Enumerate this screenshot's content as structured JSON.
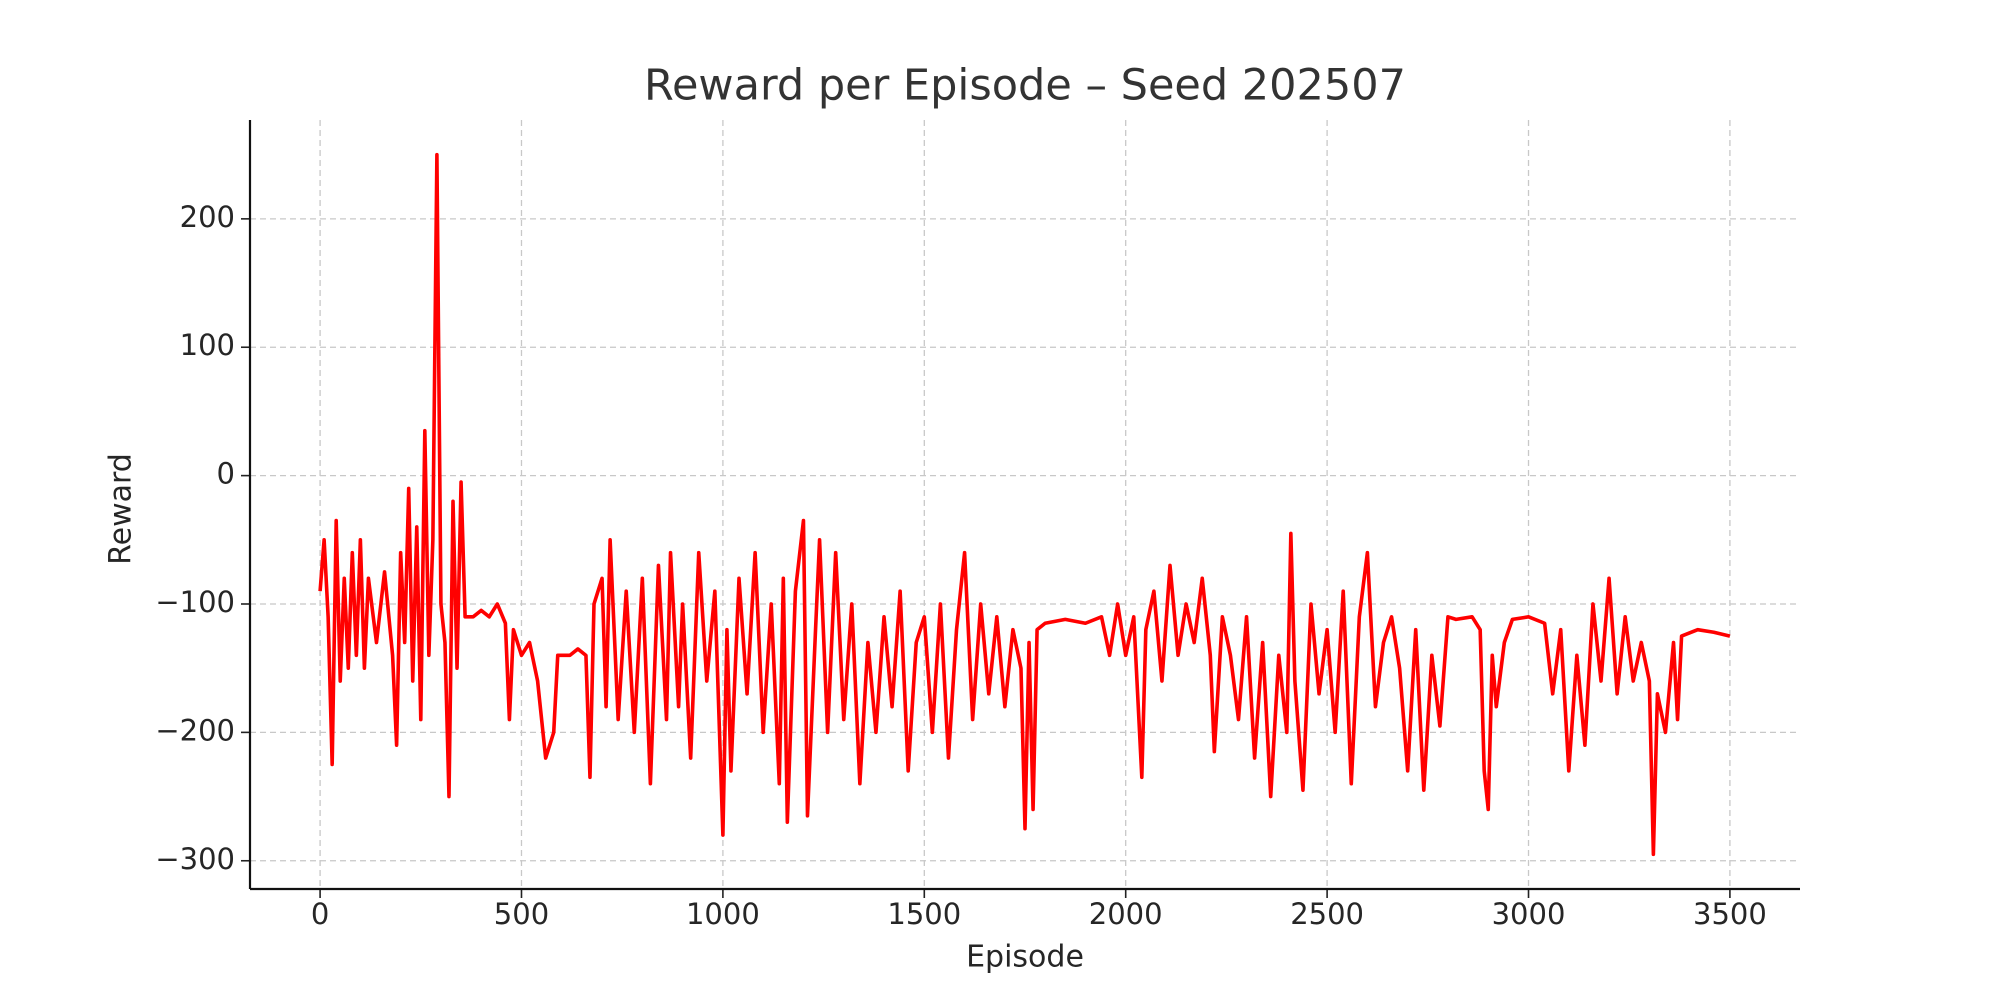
{
  "chart_data": {
    "type": "line",
    "title": "Reward per Episode – Seed 202507",
    "x_label": "Episode",
    "y_label": "Reward",
    "xlim": [
      -174,
      3674
    ],
    "ylim": [
      -322,
      277
    ],
    "xticks": [
      0,
      500,
      1000,
      1500,
      2000,
      2500,
      3000,
      3500
    ],
    "yticks": [
      {
        "value": -300,
        "label": "−300"
      },
      {
        "value": -200,
        "label": "−200"
      },
      {
        "value": -100,
        "label": "−100"
      },
      0,
      100,
      200
    ],
    "grid": true,
    "x": [
      0,
      10,
      20,
      30,
      40,
      50,
      60,
      70,
      80,
      90,
      100,
      110,
      120,
      140,
      160,
      180,
      190,
      200,
      210,
      220,
      230,
      240,
      250,
      260,
      270,
      280,
      290,
      300,
      310,
      320,
      330,
      340,
      350,
      360,
      380,
      400,
      420,
      440,
      460,
      470,
      480,
      500,
      520,
      540,
      560,
      580,
      590,
      620,
      640,
      660,
      670,
      680,
      700,
      710,
      720,
      740,
      760,
      780,
      800,
      820,
      840,
      860,
      870,
      890,
      900,
      920,
      940,
      960,
      980,
      1000,
      1010,
      1020,
      1040,
      1060,
      1080,
      1100,
      1120,
      1140,
      1150,
      1160,
      1180,
      1200,
      1210,
      1230,
      1240,
      1260,
      1280,
      1300,
      1320,
      1340,
      1360,
      1380,
      1400,
      1420,
      1440,
      1460,
      1480,
      1500,
      1520,
      1540,
      1560,
      1580,
      1600,
      1620,
      1640,
      1660,
      1680,
      1700,
      1720,
      1740,
      1750,
      1760,
      1770,
      1780,
      1800,
      1850,
      1900,
      1940,
      1960,
      1980,
      2000,
      2020,
      2040,
      2050,
      2070,
      2090,
      2110,
      2130,
      2150,
      2170,
      2190,
      2210,
      2220,
      2240,
      2260,
      2280,
      2300,
      2320,
      2340,
      2360,
      2380,
      2400,
      2410,
      2420,
      2440,
      2460,
      2480,
      2500,
      2520,
      2540,
      2560,
      2580,
      2600,
      2620,
      2640,
      2660,
      2680,
      2700,
      2720,
      2740,
      2760,
      2780,
      2800,
      2820,
      2860,
      2880,
      2890,
      2900,
      2910,
      2920,
      2940,
      2960,
      3000,
      3040,
      3060,
      3080,
      3100,
      3120,
      3140,
      3160,
      3180,
      3200,
      3220,
      3240,
      3260,
      3280,
      3300,
      3310,
      3320,
      3340,
      3360,
      3370,
      3380,
      3420,
      3460,
      3500
    ],
    "series": [
      {
        "color": "#ff0000",
        "values": [
          -90,
          -50,
          -110,
          -225,
          -35,
          -160,
          -80,
          -150,
          -60,
          -140,
          -50,
          -150,
          -80,
          -130,
          -75,
          -140,
          -210,
          -60,
          -130,
          -10,
          -160,
          -40,
          -190,
          35,
          -140,
          -50,
          250,
          -100,
          -130,
          -250,
          -20,
          -150,
          -5,
          -110,
          -110,
          -105,
          -110,
          -100,
          -115,
          -190,
          -120,
          -140,
          -130,
          -160,
          -220,
          -200,
          -140,
          -140,
          -135,
          -140,
          -235,
          -100,
          -80,
          -180,
          -50,
          -190,
          -90,
          -200,
          -80,
          -240,
          -70,
          -190,
          -60,
          -180,
          -100,
          -220,
          -60,
          -160,
          -90,
          -280,
          -120,
          -230,
          -80,
          -170,
          -60,
          -200,
          -100,
          -240,
          -80,
          -270,
          -90,
          -35,
          -265,
          -120,
          -50,
          -200,
          -60,
          -190,
          -100,
          -240,
          -130,
          -200,
          -110,
          -180,
          -90,
          -230,
          -130,
          -110,
          -200,
          -100,
          -220,
          -120,
          -60,
          -190,
          -100,
          -170,
          -110,
          -180,
          -120,
          -150,
          -275,
          -130,
          -260,
          -120,
          -115,
          -112,
          -115,
          -110,
          -140,
          -100,
          -140,
          -110,
          -235,
          -120,
          -90,
          -160,
          -70,
          -140,
          -100,
          -130,
          -80,
          -140,
          -215,
          -110,
          -140,
          -190,
          -110,
          -220,
          -130,
          -250,
          -140,
          -200,
          -45,
          -160,
          -245,
          -100,
          -170,
          -120,
          -200,
          -90,
          -240,
          -110,
          -60,
          -180,
          -130,
          -110,
          -150,
          -230,
          -120,
          -245,
          -140,
          -195,
          -110,
          -112,
          -110,
          -120,
          -230,
          -260,
          -140,
          -180,
          -130,
          -112,
          -110,
          -115,
          -170,
          -120,
          -230,
          -140,
          -210,
          -100,
          -160,
          -80,
          -170,
          -110,
          -160,
          -130,
          -160,
          -295,
          -170,
          -200,
          -130,
          -190,
          -125,
          -120,
          -122,
          -125
        ]
      }
    ]
  }
}
